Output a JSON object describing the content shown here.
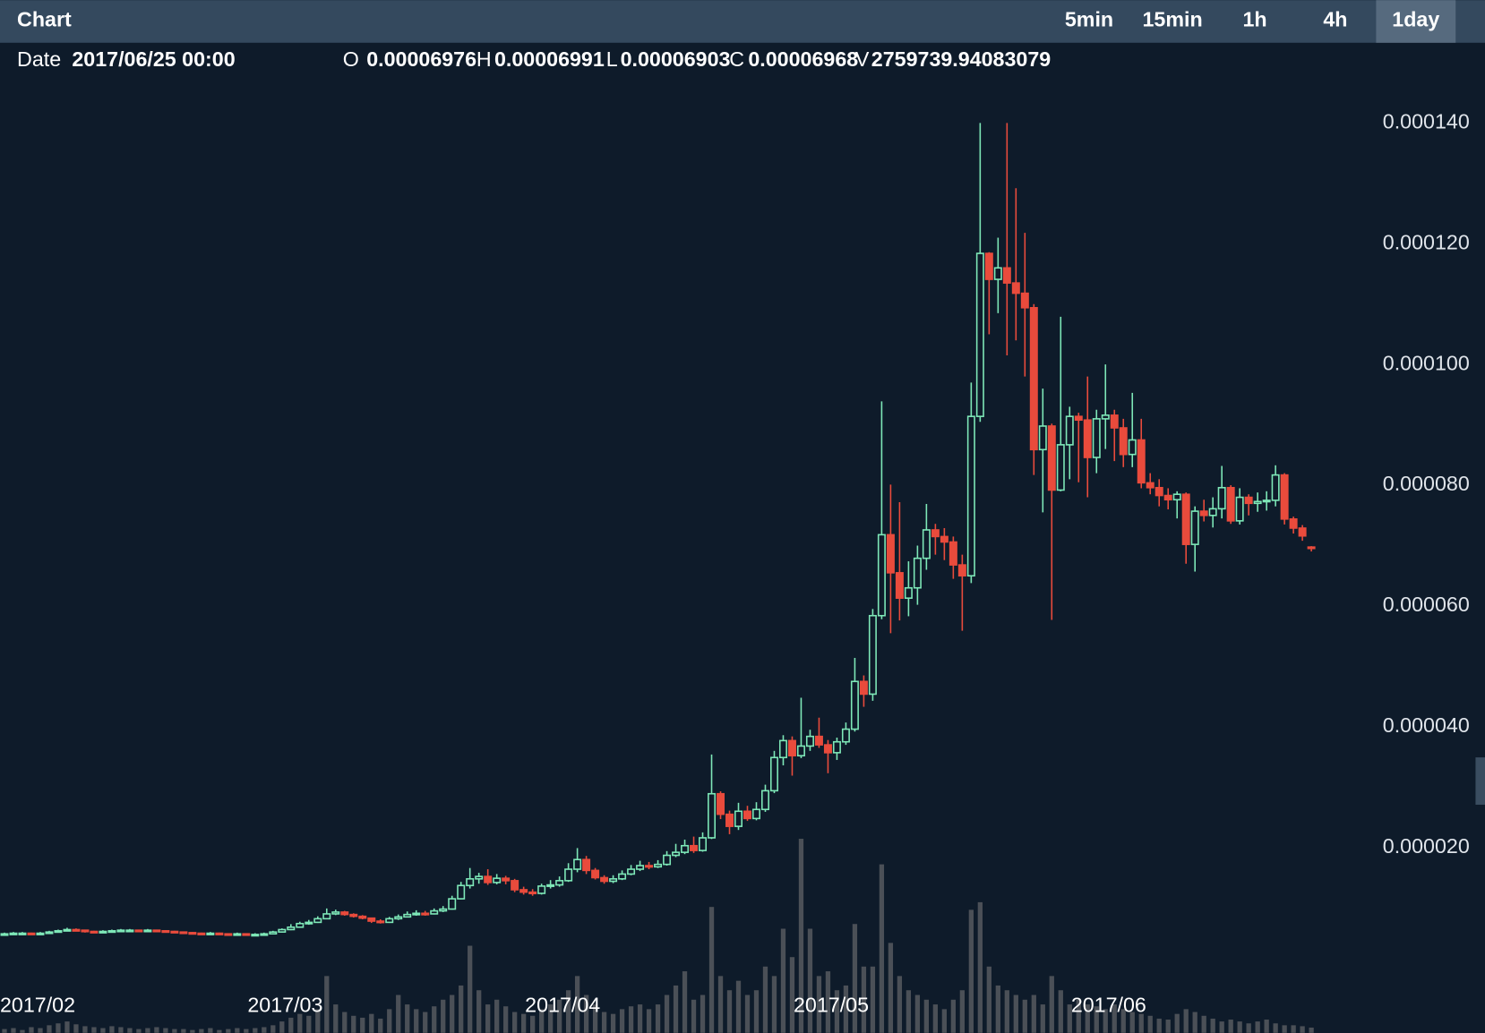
{
  "chart_data": {
    "type": "candlestick",
    "title": "Chart",
    "intervals": [
      {
        "label": "5min"
      },
      {
        "label": "15min"
      },
      {
        "label": "1h"
      },
      {
        "label": "4h"
      },
      {
        "label": "1day",
        "active": true
      }
    ],
    "header": {
      "date_label": "Date",
      "date": "2017/06/25 00:00",
      "open_label": "O",
      "high_label": "H",
      "low_label": "L",
      "close_label": "C",
      "volume_label": "V"
    },
    "up_color": "#7ee8b8",
    "down_color": "#e94b3c",
    "volume_color": "#4b5057",
    "xlim": [
      -0.5,
      165.4
    ],
    "xticks": [
      {
        "value": 0,
        "label": "2017/02"
      },
      {
        "value": 28,
        "label": "2017/03"
      },
      {
        "value": 59,
        "label": "2017/04"
      },
      {
        "value": 89,
        "label": "2017/05"
      },
      {
        "value": 120,
        "label": "2017/06"
      }
    ],
    "ylim": [
      -1.07e-05,
      0.0001478
    ],
    "yticks": [
      {
        "value": 2e-05,
        "label": "0.000020"
      },
      {
        "value": 4e-05,
        "label": "0.000040"
      },
      {
        "value": 6e-05,
        "label": "0.000060"
      },
      {
        "value": 8e-05,
        "label": "0.000080"
      },
      {
        "value": 0.0001,
        "label": "0.000100"
      },
      {
        "value": 0.00012,
        "label": "0.000120"
      },
      {
        "value": 0.00014,
        "label": "0.000140"
      }
    ],
    "y2lim": [
      0,
      110000000.0
    ],
    "open": [
      5.6e-06,
      5.7e-06,
      5.8e-06,
      5.8e-06,
      5.7e-06,
      5.8e-06,
      6e-06,
      6.2e-06,
      6.4e-06,
      6.3e-06,
      6.1e-06,
      6e-06,
      6.1e-06,
      6.2e-06,
      6.3e-06,
      6.3e-06,
      6.2e-06,
      6.3e-06,
      6.2e-06,
      6.1e-06,
      6e-06,
      5.9e-06,
      5.8e-06,
      5.7e-06,
      5.8e-06,
      5.7e-06,
      5.6e-06,
      5.7e-06,
      5.6e-06,
      5.6e-06,
      5.7e-06,
      6e-06,
      6.4e-06,
      6.8e-06,
      7.4e-06,
      7.6e-06,
      8.2e-06,
      9e-06,
      9.3e-06,
      8.9e-06,
      8.6e-06,
      8.3e-06,
      7.8e-06,
      7.6e-06,
      8.2e-06,
      8.5e-06,
      8.9e-06,
      9.1e-06,
      9e-06,
      9.5e-06,
      9.8e-06,
      1.15e-05,
      1.37e-05,
      1.48e-05,
      1.52e-05,
      1.42e-05,
      1.49e-05,
      1.45e-05,
      1.3e-05,
      1.26e-05,
      1.24e-05,
      1.36e-05,
      1.38e-05,
      1.45e-05,
      1.64e-05,
      1.8e-05,
      1.62e-05,
      1.5e-05,
      1.44e-05,
      1.48e-05,
      1.56e-05,
      1.64e-05,
      1.7e-05,
      1.68e-05,
      1.72e-05,
      1.87e-05,
      1.92e-05,
      2.03e-05,
      1.95e-05,
      2.16e-05,
      2.89e-05,
      2.55e-05,
      2.35e-05,
      2.6e-05,
      2.48e-05,
      2.63e-05,
      2.94e-05,
      3.49e-05,
      3.77e-05,
      3.52e-05,
      3.68e-05,
      3.84e-05,
      3.7e-05,
      3.57e-05,
      3.75e-05,
      3.96e-05,
      4.75e-05,
      4.54e-05,
      5.84e-05,
      7.18e-05,
      6.55e-05,
      6.13e-05,
      6.3e-05,
      6.79e-05,
      7.26e-05,
      7.15e-05,
      7.06e-05,
      6.68e-05,
      6.5e-05,
      9.14e-05,
      0.0001184,
      0.0001141,
      0.000116,
      0.0001135,
      0.0001118,
      0.0001094,
      8.59e-05,
      8.98e-05,
      7.92e-05,
      8.67e-05,
      9.14e-05,
      9.08e-05,
      8.46e-05,
      9.1e-05,
      9.16e-05,
      8.95e-05,
      8.51e-05,
      8.75e-05,
      8.04e-05,
      7.96e-05,
      7.83e-05,
      7.76e-05,
      7.85e-05,
      7.02e-05,
      7.57e-05,
      7.5e-05,
      7.61e-05,
      7.96e-05,
      7.41e-05,
      7.8e-05,
      7.7e-05,
      7.73e-05,
      7.75e-05,
      8.17e-05,
      7.44e-05,
      7.29e-05,
      6.976e-05
    ],
    "high": [
      5.9e-06,
      6e-06,
      6e-06,
      5.9e-06,
      6e-06,
      6.2e-06,
      6.4e-06,
      6.7e-06,
      6.6e-06,
      6.4e-06,
      6.2e-06,
      6.3e-06,
      6.4e-06,
      6.5e-06,
      6.5e-06,
      6.4e-06,
      6.5e-06,
      6.4e-06,
      6.3e-06,
      6.2e-06,
      6.1e-06,
      6e-06,
      5.9e-06,
      6e-06,
      5.9e-06,
      5.8e-06,
      5.9e-06,
      5.8e-06,
      5.8e-06,
      5.9e-06,
      6.2e-06,
      6.6e-06,
      7.3e-06,
      7.7e-06,
      8e-06,
      8.6e-06,
      9.9e-06,
      9.7e-06,
      9.5e-06,
      9.1e-06,
      8.8e-06,
      8.4e-06,
      8.1e-06,
      8.5e-06,
      8.9e-06,
      9.4e-06,
      9.6e-06,
      9.5e-06,
      9.9e-06,
      1.03e-05,
      1.2e-05,
      1.43e-05,
      1.66e-05,
      1.58e-05,
      1.64e-05,
      1.56e-05,
      1.53e-05,
      1.48e-05,
      1.35e-05,
      1.31e-05,
      1.4e-05,
      1.46e-05,
      1.52e-05,
      1.74e-05,
      1.99e-05,
      1.86e-05,
      1.66e-05,
      1.54e-05,
      1.54e-05,
      1.62e-05,
      1.71e-05,
      1.78e-05,
      1.76e-05,
      1.79e-05,
      1.94e-05,
      2.06e-05,
      2.13e-05,
      2.18e-05,
      2.25e-05,
      3.54e-05,
      2.93e-05,
      2.61e-05,
      2.74e-05,
      2.69e-05,
      2.75e-05,
      3.04e-05,
      3.6e-05,
      3.86e-05,
      3.84e-05,
      4.48e-05,
      3.95e-05,
      4.15e-05,
      3.78e-05,
      3.82e-05,
      4.07e-05,
      5.14e-05,
      4.85e-05,
      5.95e-05,
      9.39e-05,
      8.01e-05,
      7.72e-05,
      6.74e-05,
      7e-05,
      7.69e-05,
      7.36e-05,
      7.29e-05,
      7.15e-05,
      6.85e-05,
      9.7e-05,
      0.00014,
      0.0001186,
      0.000121,
      0.00014,
      0.0001292,
      0.0001218,
      0.00011,
      9.6e-05,
      9.02e-05,
      0.0001079,
      9.3e-05,
      9.2e-05,
      9.8e-05,
      9.25e-05,
      0.0001,
      9.25e-05,
      9.1e-05,
      9.53e-05,
      9.1e-05,
      8.2e-05,
      8.1e-05,
      7.95e-05,
      7.9e-05,
      7.88e-05,
      7.65e-05,
      7.76e-05,
      7.8e-05,
      8.32e-05,
      8e-05,
      7.95e-05,
      7.85e-05,
      7.88e-05,
      7.9e-05,
      8.33e-05,
      8.2e-05,
      7.48e-05,
      7.34e-05,
      6.991e-05
    ],
    "low": [
      5.5e-06,
      5.6e-06,
      5.6e-06,
      5.5e-06,
      5.6e-06,
      5.7e-06,
      5.9e-06,
      6.1e-06,
      6.1e-06,
      5.9e-06,
      5.8e-06,
      5.9e-06,
      6e-06,
      6.1e-06,
      6.1e-06,
      6e-06,
      6.1e-06,
      6e-06,
      5.9e-06,
      5.8e-06,
      5.7e-06,
      5.6e-06,
      5.5e-06,
      5.6e-06,
      5.5e-06,
      5.4e-06,
      5.5e-06,
      5.4e-06,
      5.4e-06,
      5.5e-06,
      5.6e-06,
      5.9e-06,
      6.3e-06,
      6.7e-06,
      7.2e-06,
      7.5e-06,
      8.1e-06,
      8.8e-06,
      8.7e-06,
      8.4e-06,
      8.1e-06,
      7.5e-06,
      7.4e-06,
      7.5e-06,
      8e-06,
      8.4e-06,
      8.7e-06,
      8.7e-06,
      8.9e-06,
      9.3e-06,
      9.7e-06,
      1.14e-05,
      1.32e-05,
      1.4e-05,
      1.38e-05,
      1.39e-05,
      1.39e-05,
      1.26e-05,
      1.22e-05,
      1.2e-05,
      1.22e-05,
      1.32e-05,
      1.35e-05,
      1.43e-05,
      1.59e-05,
      1.56e-05,
      1.47e-05,
      1.4e-05,
      1.41e-05,
      1.46e-05,
      1.54e-05,
      1.61e-05,
      1.64e-05,
      1.66e-05,
      1.7e-05,
      1.84e-05,
      1.89e-05,
      1.91e-05,
      1.93e-05,
      2.14e-05,
      2.47e-05,
      2.22e-05,
      2.29e-05,
      2.44e-05,
      2.45e-05,
      2.59e-05,
      2.9e-05,
      3.36e-05,
      3.19e-05,
      3.48e-05,
      3.6e-05,
      3.65e-05,
      3.23e-05,
      3.45e-05,
      3.7e-05,
      3.92e-05,
      4.33e-05,
      4.43e-05,
      5.78e-05,
      5.55e-05,
      5.76e-05,
      5.83e-05,
      6.02e-05,
      6.6e-05,
      6.85e-05,
      6.76e-05,
      6.45e-05,
      5.59e-05,
      6.38e-05,
      9.05e-05,
      0.000105,
      0.0001085,
      0.0001015,
      0.000104,
      9.8e-05,
      8.17e-05,
      7.55e-05,
      5.77e-05,
      7.9e-05,
      8.1e-05,
      8.05e-05,
      7.8e-05,
      8.2e-05,
      8.6e-05,
      8.4e-05,
      8.3e-05,
      8.3e-05,
      7.95e-05,
      7.85e-05,
      7.65e-05,
      7.6e-05,
      7.45e-05,
      6.7e-05,
      6.57e-05,
      7.4e-05,
      7.3e-05,
      7.45e-05,
      7.36e-05,
      7.35e-05,
      7.5e-05,
      7.56e-05,
      7.58e-05,
      7.65e-05,
      7.35e-05,
      7.2e-05,
      7.08e-05,
      6.903e-05
    ],
    "close": [
      5.7e-06,
      5.8e-06,
      5.8e-06,
      5.7e-06,
      5.8e-06,
      6e-06,
      6.2e-06,
      6.4e-06,
      6.3e-06,
      6.1e-06,
      6e-06,
      6.1e-06,
      6.2e-06,
      6.3e-06,
      6.3e-06,
      6.2e-06,
      6.3e-06,
      6.2e-06,
      6.1e-06,
      6e-06,
      5.9e-06,
      5.8e-06,
      5.7e-06,
      5.8e-06,
      5.7e-06,
      5.6e-06,
      5.7e-06,
      5.6e-06,
      5.6e-06,
      5.7e-06,
      6e-06,
      6.4e-06,
      6.8e-06,
      7.4e-06,
      7.6e-06,
      8.2e-06,
      9e-06,
      9.3e-06,
      8.9e-06,
      8.6e-06,
      8.3e-06,
      7.8e-06,
      7.6e-06,
      8.2e-06,
      8.5e-06,
      8.9e-06,
      9.1e-06,
      9e-06,
      9.5e-06,
      9.8e-06,
      1.15e-05,
      1.37e-05,
      1.48e-05,
      1.52e-05,
      1.42e-05,
      1.49e-05,
      1.45e-05,
      1.3e-05,
      1.26e-05,
      1.24e-05,
      1.36e-05,
      1.38e-05,
      1.45e-05,
      1.64e-05,
      1.8e-05,
      1.62e-05,
      1.5e-05,
      1.44e-05,
      1.48e-05,
      1.56e-05,
      1.64e-05,
      1.7e-05,
      1.68e-05,
      1.72e-05,
      1.87e-05,
      1.92e-05,
      2.03e-05,
      1.95e-05,
      2.16e-05,
      2.89e-05,
      2.55e-05,
      2.35e-05,
      2.6e-05,
      2.48e-05,
      2.63e-05,
      2.94e-05,
      3.49e-05,
      3.77e-05,
      3.52e-05,
      3.68e-05,
      3.84e-05,
      3.7e-05,
      3.57e-05,
      3.75e-05,
      3.96e-05,
      4.75e-05,
      4.54e-05,
      5.84e-05,
      7.18e-05,
      6.55e-05,
      6.13e-05,
      6.3e-05,
      6.79e-05,
      7.26e-05,
      7.15e-05,
      7.06e-05,
      6.68e-05,
      6.5e-05,
      9.14e-05,
      0.0001184,
      0.0001141,
      0.000116,
      0.0001135,
      0.0001118,
      0.0001094,
      8.59e-05,
      8.98e-05,
      7.92e-05,
      8.67e-05,
      9.14e-05,
      9.08e-05,
      8.46e-05,
      9.1e-05,
      9.16e-05,
      8.95e-05,
      8.51e-05,
      8.75e-05,
      8.04e-05,
      7.96e-05,
      7.83e-05,
      7.76e-05,
      7.85e-05,
      7.02e-05,
      7.57e-05,
      7.5e-05,
      7.61e-05,
      7.96e-05,
      7.41e-05,
      7.8e-05,
      7.7e-05,
      7.73e-05,
      7.75e-05,
      8.17e-05,
      7.44e-05,
      7.29e-05,
      7.16e-05,
      6.968e-05
    ],
    "volume": [
      2000000.0,
      2500000.0,
      1500000.0,
      3000000.0,
      2500000.0,
      4000000.0,
      5000000.0,
      6000000.0,
      4500000.0,
      3500000.0,
      3000000.0,
      2500000.0,
      3500000.0,
      3000000.0,
      2500000.0,
      2000000.0,
      2500000.0,
      3000000.0,
      2500000.0,
      2000000.0,
      2000000.0,
      1500000.0,
      2000000.0,
      2500000.0,
      1500000.0,
      2000000.0,
      2500000.0,
      2000000.0,
      2500000.0,
      3000000.0,
      4000000.0,
      6000000.0,
      8000000.0,
      10000000.0,
      9000000.0,
      12500000.0,
      30000000.0,
      15000000.0,
      11000000.0,
      9000000.0,
      8000000.0,
      10000000.0,
      7500000.0,
      12500000.0,
      20000000.0,
      15000000.0,
      12500000.0,
      11000000.0,
      14000000.0,
      17500000.0,
      20000000.0,
      25000000.0,
      46000000.0,
      22500000.0,
      15000000.0,
      17500000.0,
      14000000.0,
      11000000.0,
      10000000.0,
      9000000.0,
      12500000.0,
      15000000.0,
      17500000.0,
      22500000.0,
      30000000.0,
      20000000.0,
      15000000.0,
      11000000.0,
      10000000.0,
      12500000.0,
      14000000.0,
      15000000.0,
      12500000.0,
      15000000.0,
      20000000.0,
      25000000.0,
      32500000.0,
      17500000.0,
      20000000.0,
      66500000.0,
      30000000.0,
      22500000.0,
      27500000.0,
      20000000.0,
      22500000.0,
      35000000.0,
      30000000.0,
      55000000.0,
      40000000.0,
      102500000.0,
      55000000.0,
      30000000.0,
      32500000.0,
      22500000.0,
      25000000.0,
      57500000.0,
      35000000.0,
      35000000.0,
      89000000.0,
      47500000.0,
      30000000.0,
      22500000.0,
      20000000.0,
      17500000.0,
      15000000.0,
      12500000.0,
      17500000.0,
      22500000.0,
      65000000.0,
      69000000.0,
      35000000.0,
      25000000.0,
      22500000.0,
      20000000.0,
      17500000.0,
      20000000.0,
      15000000.0,
      30000000.0,
      22500000.0,
      15000000.0,
      17500000.0,
      15000000.0,
      14000000.0,
      12500000.0,
      15000000.0,
      12500000.0,
      11000000.0,
      10000000.0,
      9000000.0,
      7500000.0,
      7000000.0,
      10000000.0,
      12500000.0,
      11000000.0,
      9000000.0,
      7500000.0,
      6000000.0,
      7000000.0,
      6000000.0,
      5000000.0,
      6000000.0,
      7000000.0,
      5000000.0,
      4000000.0,
      4000000.0,
      3500000.0,
      2759739.94083079
    ]
  }
}
